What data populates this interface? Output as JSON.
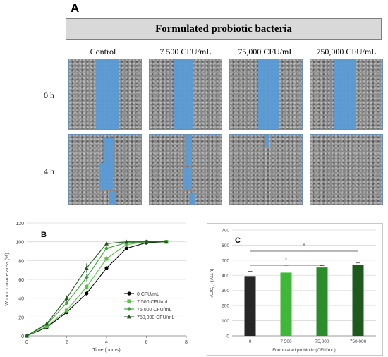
{
  "panel_a": {
    "label": "A",
    "banner": "Formulated probiotic bacteria",
    "columns": [
      "Control",
      "7 500 CFU/mL",
      "75,000 CFU/mL",
      "750,000 CFU/mL"
    ],
    "rows": [
      "0 h",
      "4 h"
    ]
  },
  "chart_data": [
    {
      "panel_label": "B",
      "type": "line",
      "xlabel": "Time (hours)",
      "ylabel": "Wound closure area (%)",
      "xlim": [
        0,
        8
      ],
      "ylim": [
        0,
        120
      ],
      "xticks": [
        0,
        2,
        4,
        6,
        8
      ],
      "yticks": [
        0,
        20,
        40,
        60,
        80,
        100,
        120
      ],
      "grid": "horizontal",
      "legend_position": "right-middle",
      "x": [
        0,
        1,
        2,
        3,
        4,
        5,
        6,
        7
      ],
      "series": [
        {
          "name": "0 CFU/mL",
          "marker": "circle",
          "color": "#000000",
          "values": [
            0,
            9,
            25,
            45,
            72,
            93,
            99,
            100
          ],
          "errors": [
            0,
            1,
            1,
            2,
            2,
            1,
            1,
            0
          ]
        },
        {
          "name": "7 500 CFU/mL",
          "marker": "square",
          "color": "#5cc24a",
          "values": [
            0,
            10,
            27,
            52,
            82,
            97,
            100,
            100
          ],
          "errors": [
            0,
            1,
            2,
            3,
            3,
            1,
            0,
            0
          ]
        },
        {
          "name": "75,000 CFU/mL",
          "marker": "diamond",
          "color": "#3f9e3a",
          "values": [
            0,
            12,
            35,
            62,
            93,
            99,
            100,
            100
          ],
          "errors": [
            0,
            2,
            2,
            4,
            2,
            1,
            0,
            0
          ]
        },
        {
          "name": "750,000 CFU/mL",
          "marker": "triangle",
          "color": "#1f5a1f",
          "values": [
            0,
            13,
            40,
            72,
            98,
            100,
            100,
            100
          ],
          "errors": [
            0,
            3,
            3,
            5,
            1,
            0,
            0,
            0
          ]
        }
      ]
    },
    {
      "panel_label": "C",
      "type": "bar",
      "xlabel": "Formulated probiotic (CFU/mL)",
      "ylabel_main": "AUC",
      "ylabel_sub": "0-7",
      "ylabel_unit": " (AU.h)",
      "categories": [
        "0",
        "7 500",
        "75,000",
        "750,000"
      ],
      "values": [
        395,
        418,
        452,
        470
      ],
      "errors": [
        32,
        48,
        12,
        12
      ],
      "colors": [
        "#262626",
        "#3fb83a",
        "#2a8c2a",
        "#1e5a1e"
      ],
      "ylim": [
        0,
        700
      ],
      "yticks": [
        0,
        100,
        200,
        300,
        400,
        500,
        600,
        700
      ],
      "grid": "horizontal",
      "significance": [
        {
          "from": 0,
          "to": 2,
          "label": "*"
        },
        {
          "from": 0,
          "to": 3,
          "label": "*"
        }
      ]
    }
  ]
}
